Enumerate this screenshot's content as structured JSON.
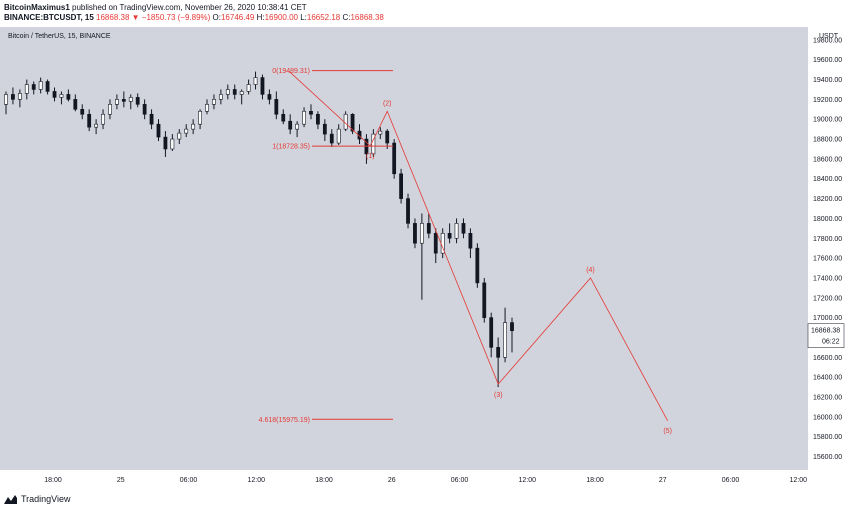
{
  "header": {
    "author": "BitcoinMaximus1",
    "published": "published on TradingView.com, November 26, 2020 10:38:41 CET",
    "symbol": "BINANCE:BTCUSDT, 15",
    "last": "16868.38",
    "arrow": "▼",
    "change": "−1850.73 (−9.89%)",
    "o_label": "O:",
    "o_value": "16746.49",
    "h_label": "H:",
    "h_value": "16900.00",
    "l_label": "L:",
    "l_value": "16652.18",
    "c_label": "C:",
    "c_value": "16868.38"
  },
  "footer": {
    "brand": "TradingView"
  },
  "colors": {
    "plot_bg": "#d1d4dc",
    "candle": "#131722",
    "wave": "#e53935",
    "price_tag": "#ffffff"
  },
  "chart_data": {
    "type": "candlestick",
    "title": "Bitcoin / TetherUS, 15, BINANCE",
    "currency": "USDT",
    "ylim": [
      15400,
      20000
    ],
    "y_ticks": [
      15600,
      15800,
      16000,
      16200,
      16400,
      16600,
      16800,
      17000,
      17200,
      17400,
      17600,
      17800,
      18000,
      18200,
      18400,
      18600,
      18800,
      19000,
      19200,
      19400,
      19600,
      19800
    ],
    "x_ticks": [
      "18:00",
      "25",
      "06:00",
      "12:00",
      "18:00",
      "26",
      "06:00",
      "12:00",
      "18:00",
      "27",
      "06:00",
      "12:00"
    ],
    "current_price": "16868.38",
    "countdown": "06:22",
    "fib_levels": [
      {
        "label": "0(19489.31)",
        "price": 19489.31
      },
      {
        "label": "1(18728.35)",
        "price": 18728.35
      },
      {
        "label": "4.618(15975.19)",
        "price": 15975.19
      }
    ],
    "wave_points": [
      {
        "label": "",
        "time": "25 15:00",
        "price": 19480
      },
      {
        "label": "(1)",
        "time": "25 22:10",
        "price": 18730
      },
      {
        "label": "(2)",
        "time": "25 23:40",
        "price": 19080
      },
      {
        "label": "(3)",
        "time": "26 09:30",
        "price": 16330
      },
      {
        "label": "(4)",
        "time": "26 17:40",
        "price": 17400
      },
      {
        "label": "(5)",
        "time": "27 00:30",
        "price": 15960
      }
    ],
    "candles": [
      [
        19150,
        19280,
        19050,
        19250
      ],
      [
        19250,
        19320,
        19150,
        19200
      ],
      [
        19200,
        19300,
        19120,
        19260
      ],
      [
        19260,
        19400,
        19200,
        19350
      ],
      [
        19350,
        19380,
        19250,
        19300
      ],
      [
        19300,
        19420,
        19260,
        19380
      ],
      [
        19380,
        19400,
        19250,
        19280
      ],
      [
        19280,
        19320,
        19180,
        19220
      ],
      [
        19220,
        19280,
        19150,
        19250
      ],
      [
        19250,
        19300,
        19180,
        19200
      ],
      [
        19200,
        19250,
        19080,
        19100
      ],
      [
        19100,
        19150,
        19000,
        19050
      ],
      [
        19050,
        19100,
        18880,
        18920
      ],
      [
        18920,
        19000,
        18850,
        18950
      ],
      [
        18950,
        19100,
        18900,
        19050
      ],
      [
        19050,
        19200,
        19000,
        19150
      ],
      [
        19150,
        19250,
        19100,
        19200
      ],
      [
        19200,
        19280,
        19120,
        19180
      ],
      [
        19180,
        19250,
        19100,
        19220
      ],
      [
        19220,
        19260,
        19120,
        19150
      ],
      [
        19150,
        19200,
        19000,
        19050
      ],
      [
        19050,
        19100,
        18900,
        18950
      ],
      [
        18950,
        19000,
        18780,
        18820
      ],
      [
        18820,
        18880,
        18620,
        18700
      ],
      [
        18700,
        18850,
        18680,
        18800
      ],
      [
        18800,
        18900,
        18750,
        18860
      ],
      [
        18860,
        18950,
        18820,
        18900
      ],
      [
        18900,
        19000,
        18850,
        18950
      ],
      [
        18950,
        19100,
        18900,
        19080
      ],
      [
        19080,
        19200,
        19050,
        19150
      ],
      [
        19150,
        19250,
        19100,
        19200
      ],
      [
        19200,
        19300,
        19150,
        19250
      ],
      [
        19250,
        19350,
        19200,
        19300
      ],
      [
        19300,
        19350,
        19200,
        19250
      ],
      [
        19250,
        19300,
        19150,
        19280
      ],
      [
        19280,
        19400,
        19250,
        19350
      ],
      [
        19350,
        19480,
        19300,
        19420
      ],
      [
        19420,
        19450,
        19200,
        19250
      ],
      [
        19250,
        19300,
        19150,
        19200
      ],
      [
        19200,
        19280,
        19000,
        19050
      ],
      [
        19050,
        19100,
        18950,
        18980
      ],
      [
        18980,
        19050,
        18850,
        18900
      ],
      [
        18900,
        18980,
        18820,
        18950
      ],
      [
        18950,
        19120,
        18920,
        19080
      ],
      [
        19080,
        19150,
        19000,
        19050
      ],
      [
        19050,
        19080,
        18900,
        18950
      ],
      [
        18950,
        19000,
        18780,
        18850
      ],
      [
        18850,
        18900,
        18720,
        18760
      ],
      [
        18760,
        18950,
        18740,
        18900
      ],
      [
        18900,
        19080,
        18880,
        19050
      ],
      [
        19050,
        19060,
        18850,
        18880
      ],
      [
        18880,
        18950,
        18750,
        18800
      ],
      [
        18800,
        18850,
        18550,
        18650
      ],
      [
        18650,
        18900,
        18620,
        18850
      ],
      [
        18850,
        18920,
        18800,
        18880
      ],
      [
        18880,
        18900,
        18700,
        18760
      ],
      [
        18760,
        18800,
        18400,
        18450
      ],
      [
        18450,
        18500,
        18150,
        18200
      ],
      [
        18200,
        18250,
        17900,
        17950
      ],
      [
        17950,
        18000,
        17700,
        17750
      ],
      [
        17750,
        18050,
        17180,
        17950
      ],
      [
        17950,
        18050,
        17800,
        17850
      ],
      [
        17850,
        17900,
        17550,
        17650
      ],
      [
        17650,
        17900,
        17600,
        17850
      ],
      [
        17850,
        17950,
        17750,
        17800
      ],
      [
        17800,
        18000,
        17750,
        17950
      ],
      [
        17950,
        18000,
        17800,
        17850
      ],
      [
        17850,
        17900,
        17600,
        17700
      ],
      [
        17700,
        17750,
        17300,
        17350
      ],
      [
        17350,
        17400,
        16950,
        17000
      ],
      [
        17000,
        17050,
        16600,
        16700
      ],
      [
        16700,
        16800,
        16300,
        16600
      ],
      [
        16600,
        17100,
        16550,
        16950
      ],
      [
        16950,
        17000,
        16650,
        16868
      ]
    ]
  }
}
